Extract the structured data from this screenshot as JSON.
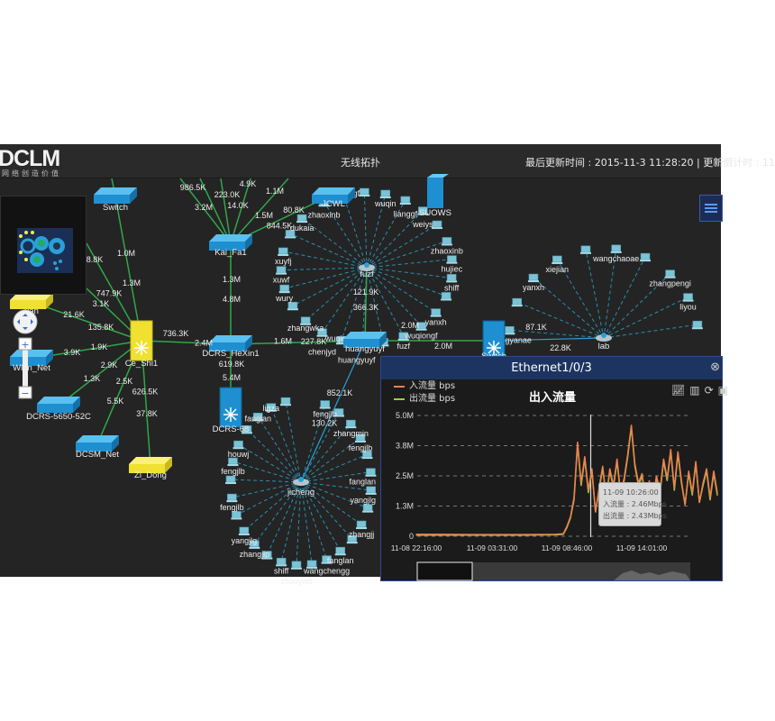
{
  "header": {
    "logo": "DCLM",
    "tagline": "网络创造价值",
    "title": "无线拓扑",
    "update_text": "最后更新时间 : 2015-11-3 11:28:20 | 更新倒计时 : 11"
  },
  "colors": {
    "link": "#2fa84a",
    "switch_blue": "#1e8fd0",
    "switch_yellow": "#f0e030",
    "host": "#7cc3d6",
    "dashed": "#2a8fb0",
    "in_series": "#f08050",
    "out_series": "#9ccc40",
    "panel_header": "#1d3461"
  },
  "topology": {
    "nodes": [
      {
        "id": "switch_top",
        "label": "Switch",
        "kind": "switch",
        "color": "blue"
      },
      {
        "id": "kaifa",
        "label": "Kai_Fa1",
        "kind": "switch",
        "color": "blue"
      },
      {
        "id": "ceshi",
        "label": "Ce_Shi1",
        "kind": "chassis",
        "color": "yellow"
      },
      {
        "id": "hexin",
        "label": "DCRS_HeXin1",
        "kind": "switch",
        "color": "blue"
      },
      {
        "id": "dcrs68",
        "label": "DCRS-68",
        "kind": "chassis",
        "color": "blue"
      },
      {
        "id": "huan",
        "label": "uan",
        "kind": "switch",
        "color": "yellow"
      },
      {
        "id": "wlan",
        "label": "Wlan_Net",
        "kind": "switch",
        "color": "blue"
      },
      {
        "id": "dcrs5650",
        "label": "DCRS-5650-52C",
        "kind": "switch",
        "color": "blue"
      },
      {
        "id": "dcsm",
        "label": "DCSM_Net",
        "kind": "switch",
        "color": "blue"
      },
      {
        "id": "zidong",
        "label": "Zi_Dong",
        "kind": "switch",
        "color": "yellow"
      },
      {
        "id": "jcwl",
        "label": "JCWL",
        "kind": "switch",
        "color": "blue"
      },
      {
        "id": "suows",
        "label": "SUOWS",
        "kind": "server",
        "color": "blue"
      },
      {
        "id": "huang",
        "label": "huangyuyf",
        "kind": "switch",
        "color": "blue"
      },
      {
        "id": "switch_mid",
        "label": "Switch",
        "kind": "chassis",
        "color": "blue"
      },
      {
        "id": "fuzf",
        "label": "fuzf",
        "kind": "hub",
        "color": "gray"
      },
      {
        "id": "lab",
        "label": "lab",
        "kind": "hub",
        "color": "gray"
      },
      {
        "id": "jicheng",
        "label": "jicheng",
        "kind": "hub",
        "color": "gray"
      }
    ],
    "link_labels": [
      "986.5K",
      "3.2M",
      "223.0K",
      "4.9K",
      "14.0K",
      "1.1M",
      "1.5M",
      "844.5K",
      "80.8K",
      "1.0M",
      "1.3M",
      "8.8K",
      "747.9K",
      "3.1K",
      "21.6K",
      "135.8K",
      "3.9K",
      "1.9K",
      "2.9K",
      "1.3K",
      "2.5K",
      "5.5K",
      "626.5K",
      "37.8K",
      "736.3K",
      "2.4M",
      "1.3M",
      "4.8M",
      "619.8K",
      "5.4M",
      "1.6M",
      "227.8K",
      "121.9K",
      "366.3K",
      "2.0M",
      "2.0M",
      "852.1K",
      "130.2K",
      "87.1K",
      "22.8K"
    ],
    "clusters": {
      "fuzf": [
        "zhaoxinb",
        "wuqiongf",
        "wuqin",
        "lianggf",
        "weiys",
        "zhaoxinb",
        "hujiec",
        "shiff",
        "yanxh",
        "wuqiongf",
        "fuzf",
        "huangyuyf",
        "wuqiongf",
        "chenjyd",
        "zhangwka",
        "wury",
        "xuwf",
        "xuyfj",
        "dukaia"
      ],
      "lab": [
        "zhangyanae",
        "yanxh",
        "xiejian",
        "wangchaoae",
        "zhangpengi",
        "liyou"
      ],
      "jicheng": [
        "fengjlb",
        "zhangmin",
        "fengjlb",
        "fanglan",
        "yangjlg",
        "zhangjj",
        "fanglan",
        "wangchengg",
        "zhouywb",
        "shiff",
        "zhangjip",
        "yangjlg",
        "fengjlb",
        "fengjlb",
        "houwj",
        "fanglan",
        "ligza"
      ]
    }
  },
  "zoom_controls": {
    "plus": "+",
    "minus": "−"
  },
  "panel": {
    "title": "Ethernet1/0/3",
    "close_icon": "close-circle-icon",
    "tools": [
      "line-chart-icon",
      "bar-chart-icon",
      "refresh-icon",
      "save-icon"
    ],
    "tooltip": {
      "time": "11-09 10:26:00",
      "in": "入流量 : 2.46Mbps",
      "out": "出流量 : 2.43Mbps"
    }
  },
  "chart_data": {
    "type": "line",
    "title": "出入流量",
    "xlabel": "",
    "ylabel": "",
    "ylim": [
      0,
      5.0
    ],
    "y_ticks": [
      "0",
      "1.3M",
      "2.5M",
      "3.8M",
      "5.0M"
    ],
    "y_tick_values": [
      0,
      1.25,
      2.5,
      3.75,
      5.0
    ],
    "x_ticks": [
      "11-08 22:16:00",
      "11-09 03:31:00",
      "11-09 08:46:00",
      "11-09 14:01:00"
    ],
    "grid": true,
    "legend": "top-left",
    "x": [
      "11-08 22:16",
      "11-09 00:00",
      "11-09 02:00",
      "11-09 04:00",
      "11-09 06:00",
      "11-09 08:00",
      "11-09 08:31",
      "11-09 08:46",
      "11-09 09:01",
      "11-09 09:16",
      "11-09 09:31",
      "11-09 09:46",
      "11-09 10:01",
      "11-09 10:16",
      "11-09 10:31",
      "11-09 10:46",
      "11-09 11:01",
      "11-09 11:16",
      "11-09 11:31",
      "11-09 11:46",
      "11-09 12:01",
      "11-09 12:16",
      "11-09 12:31",
      "11-09 12:46",
      "11-09 13:01",
      "11-09 13:16",
      "11-09 13:31",
      "11-09 13:46",
      "11-09 14:01",
      "11-09 14:16",
      "11-09 14:31",
      "11-09 14:46",
      "11-09 15:01",
      "11-09 15:16",
      "11-09 15:31",
      "11-09 15:46",
      "11-09 16:01",
      "11-09 16:16",
      "11-09 16:31",
      "11-09 16:46",
      "11-09 17:01",
      "11-09 17:16",
      "11-09 17:31",
      "11-09 17:46",
      "11-09 18:01",
      "11-09 18:16",
      "11-09 18:31",
      "11-09 18:46",
      "11-09 19:01",
      "11-09 19:16"
    ],
    "series": [
      {
        "name": "入流量 bps",
        "values": [
          0.08,
          0.08,
          0.07,
          0.07,
          0.07,
          0.08,
          0.1,
          0.4,
          0.8,
          1.6,
          3.9,
          2.2,
          3.3,
          1.9,
          2.8,
          1.0,
          2.0,
          2.9,
          1.6,
          2.8,
          2.1,
          3.2,
          1.8,
          2.4,
          3.4,
          4.6,
          3.0,
          2.2,
          2.6,
          1.5,
          2.3,
          1.4,
          2.5,
          1.9,
          3.2,
          2.4,
          3.6,
          2.0,
          3.5,
          2.3,
          1.3,
          2.7,
          1.8,
          3.1,
          1.4,
          2.2,
          2.8,
          1.6,
          2.7,
          1.8
        ]
      },
      {
        "name": "出流量 bps",
        "values": [
          0.05,
          0.05,
          0.05,
          0.05,
          0.05,
          0.06,
          0.08,
          0.35,
          0.75,
          1.5,
          3.8,
          2.1,
          3.2,
          1.8,
          2.7,
          1.0,
          1.9,
          2.8,
          1.6,
          2.7,
          2.0,
          3.1,
          1.7,
          2.3,
          3.3,
          4.5,
          2.9,
          2.1,
          2.5,
          1.4,
          2.2,
          1.4,
          2.4,
          1.8,
          3.1,
          2.3,
          3.5,
          1.9,
          3.4,
          2.2,
          1.3,
          2.6,
          1.7,
          3.0,
          1.4,
          2.1,
          2.7,
          1.5,
          2.6,
          1.7
        ]
      }
    ],
    "cursor_time": "11-09 10:26"
  }
}
